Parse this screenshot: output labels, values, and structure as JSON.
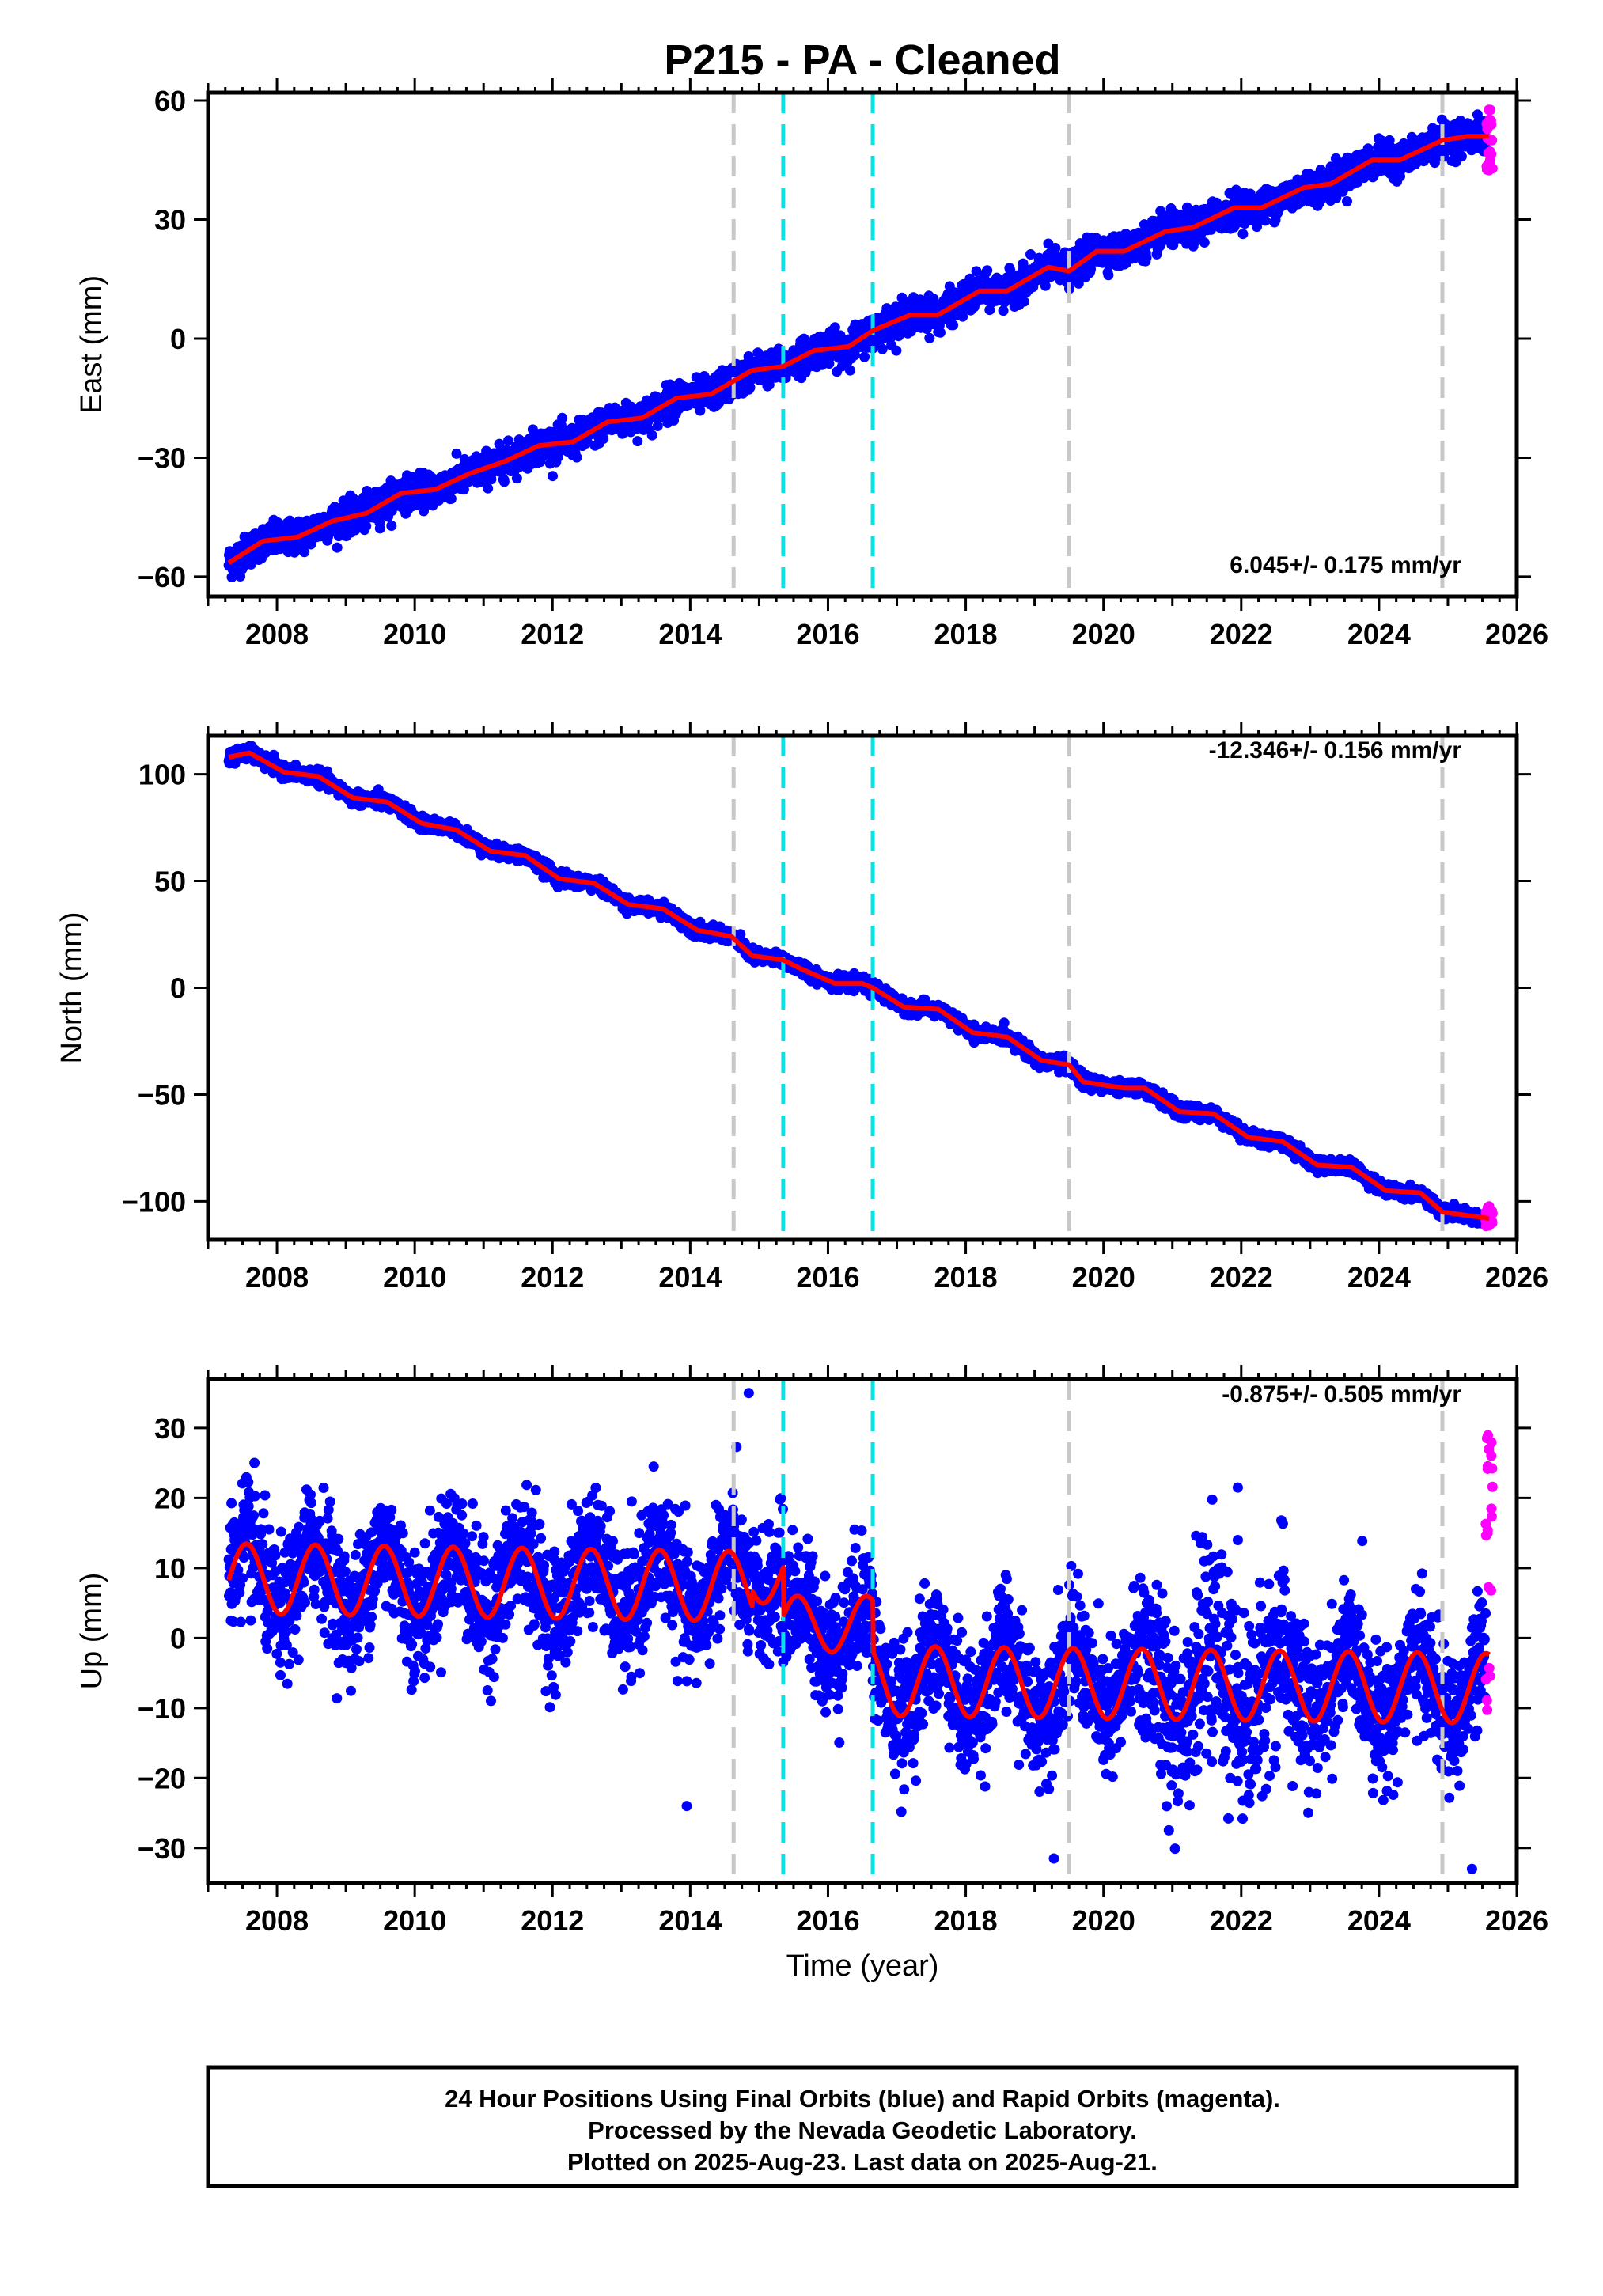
{
  "title": "P215  - PA - Cleaned",
  "colors": {
    "final_orbits": "#0000ff",
    "rapid_orbits": "#ff00ff",
    "model": "#ff0000",
    "equipment_change": "#c8c8c8",
    "earthquake": "#00e6e6"
  },
  "chart_data": [
    {
      "type": "scatter",
      "name": "east",
      "ylabel": "East (mm)",
      "xlim": [
        2007.0,
        2026.0
      ],
      "ylim": [
        -65,
        62
      ],
      "yticks": [
        60,
        30,
        0,
        -30,
        -60
      ],
      "xticks": [
        2008,
        2010,
        2012,
        2014,
        2016,
        2018,
        2020,
        2022,
        2024,
        2026
      ],
      "rate_label": "6.045+/- 0.175 mm/yr",
      "grey_lines": [
        2014.63,
        2019.5,
        2024.92
      ],
      "cyan_lines": [
        2015.35,
        2016.65
      ],
      "model_line": [
        [
          2007.3,
          -56.5
        ],
        [
          2007.8,
          -51
        ],
        [
          2008.3,
          -50
        ],
        [
          2008.8,
          -46
        ],
        [
          2009.3,
          -44
        ],
        [
          2009.8,
          -39
        ],
        [
          2010.3,
          -38
        ],
        [
          2010.8,
          -34
        ],
        [
          2011.3,
          -31
        ],
        [
          2011.8,
          -27
        ],
        [
          2012.3,
          -26
        ],
        [
          2012.8,
          -21
        ],
        [
          2013.3,
          -20
        ],
        [
          2013.8,
          -15
        ],
        [
          2014.3,
          -14
        ],
        [
          2014.6,
          -11
        ],
        [
          2014.9,
          -8
        ],
        [
          2015.35,
          -7
        ],
        [
          2015.8,
          -3
        ],
        [
          2016.3,
          -2
        ],
        [
          2016.65,
          2
        ],
        [
          2017.2,
          6
        ],
        [
          2017.6,
          6
        ],
        [
          2018.2,
          12
        ],
        [
          2018.6,
          12
        ],
        [
          2019.2,
          18
        ],
        [
          2019.5,
          17
        ],
        [
          2019.9,
          22
        ],
        [
          2020.3,
          22
        ],
        [
          2020.9,
          27
        ],
        [
          2021.3,
          28
        ],
        [
          2021.9,
          33
        ],
        [
          2022.3,
          33
        ],
        [
          2022.9,
          38
        ],
        [
          2023.3,
          39
        ],
        [
          2023.9,
          45
        ],
        [
          2024.3,
          45
        ],
        [
          2024.8,
          49
        ],
        [
          2024.92,
          50
        ],
        [
          2025.3,
          51
        ],
        [
          2025.6,
          51
        ]
      ],
      "final_series": {
        "start": 2007.3,
        "end": 2025.55,
        "start_value": -57,
        "end_value": 50,
        "annual_amplitude": 2,
        "scatter": 2,
        "step_every_year": 0
      },
      "rapid_series": {
        "start": 2025.55,
        "end": 2025.65,
        "range": [
          41,
          58
        ]
      }
    },
    {
      "type": "scatter",
      "name": "north",
      "ylabel": "North (mm)",
      "xlim": [
        2007.0,
        2026.0
      ],
      "ylim": [
        -118,
        118
      ],
      "yticks": [
        100,
        50,
        0,
        -50,
        -100
      ],
      "xticks": [
        2008,
        2010,
        2012,
        2014,
        2016,
        2018,
        2020,
        2022,
        2024,
        2026
      ],
      "rate_label": "-12.346+/- 0.156 mm/yr",
      "grey_lines": [
        2014.63,
        2019.5,
        2024.92
      ],
      "cyan_lines": [
        2015.35,
        2016.65
      ],
      "model_line": [
        [
          2007.3,
          108
        ],
        [
          2007.6,
          110
        ],
        [
          2008.1,
          101
        ],
        [
          2008.6,
          99
        ],
        [
          2009.1,
          89
        ],
        [
          2009.6,
          87
        ],
        [
          2010.1,
          77
        ],
        [
          2010.6,
          74
        ],
        [
          2011.1,
          64
        ],
        [
          2011.6,
          62
        ],
        [
          2012.1,
          51
        ],
        [
          2012.6,
          49
        ],
        [
          2013.1,
          39
        ],
        [
          2013.6,
          37
        ],
        [
          2014.1,
          27
        ],
        [
          2014.6,
          24
        ],
        [
          2014.9,
          15
        ],
        [
          2015.35,
          13
        ],
        [
          2015.6,
          9
        ],
        [
          2016.1,
          2
        ],
        [
          2016.5,
          2
        ],
        [
          2016.65,
          0
        ],
        [
          2017.1,
          -9
        ],
        [
          2017.6,
          -10
        ],
        [
          2018.1,
          -21
        ],
        [
          2018.6,
          -23
        ],
        [
          2019.1,
          -34
        ],
        [
          2019.5,
          -36
        ],
        [
          2019.7,
          -44
        ],
        [
          2020.3,
          -47
        ],
        [
          2020.6,
          -47
        ],
        [
          2021.1,
          -58
        ],
        [
          2021.6,
          -59
        ],
        [
          2022.1,
          -70
        ],
        [
          2022.6,
          -72
        ],
        [
          2023.1,
          -83
        ],
        [
          2023.6,
          -84
        ],
        [
          2024.1,
          -95
        ],
        [
          2024.6,
          -96
        ],
        [
          2024.92,
          -105
        ],
        [
          2025.6,
          -108
        ]
      ],
      "final_series": {
        "start": 2007.3,
        "end": 2025.55,
        "start_value": 108,
        "end_value": -108,
        "annual_amplitude": 2,
        "scatter": 1.5,
        "step_every_year": 0
      },
      "rapid_series": {
        "start": 2025.55,
        "end": 2025.65,
        "range": [
          -112,
          -102
        ]
      }
    },
    {
      "type": "scatter",
      "name": "up",
      "ylabel": "Up (mm)",
      "xlabel": "Time (year)",
      "xlim": [
        2007.0,
        2026.0
      ],
      "ylim": [
        -35,
        37
      ],
      "yticks": [
        30,
        20,
        10,
        0,
        -10,
        -20,
        -30
      ],
      "xticks": [
        2008,
        2010,
        2012,
        2014,
        2016,
        2018,
        2020,
        2022,
        2024,
        2026
      ],
      "rate_label": "-0.875+/- 0.505 mm/yr",
      "grey_lines": [
        2014.63,
        2019.5,
        2024.92
      ],
      "cyan_lines": [
        2015.35,
        2016.65
      ],
      "model_segments": [
        {
          "start": 2007.3,
          "end": 2014.9,
          "offset": 8.5,
          "trend": -0.15,
          "amplitude": 5,
          "phase": 2007.35
        },
        {
          "start": 2014.9,
          "end": 2015.35,
          "offset": 9,
          "trend": 0,
          "amplitude": 4,
          "phase": 2007.35
        },
        {
          "start": 2015.35,
          "end": 2016.65,
          "offset": 2,
          "trend": 0,
          "amplitude": 4,
          "phase": 2007.35
        },
        {
          "start": 2016.65,
          "end": 2025.6,
          "offset": -5,
          "trend": -0.12,
          "amplitude": 5,
          "phase": 2007.35
        }
      ],
      "final_series": {
        "start": 2007.3,
        "end": 2025.55,
        "scatter": 4.5
      },
      "rapid_series": {
        "start": 2025.55,
        "end": 2025.65,
        "range": [
          -11,
          29
        ]
      },
      "outliers": [
        [
          2013.95,
          -24
        ],
        [
          2021.95,
          21.5
        ],
        [
          2021.95,
          14
        ],
        [
          2019.28,
          -31.5
        ],
        [
          2025.35,
          -33
        ],
        [
          2008.05,
          -3.5
        ],
        [
          2014.85,
          35
        ]
      ]
    }
  ],
  "footer": {
    "line1": "24 Hour Positions Using Final Orbits (blue) and Rapid Orbits (magenta).",
    "line2": "Processed by the Nevada Geodetic Laboratory.",
    "line3": "Plotted on 2025-Aug-23. Last data on 2025-Aug-21."
  }
}
